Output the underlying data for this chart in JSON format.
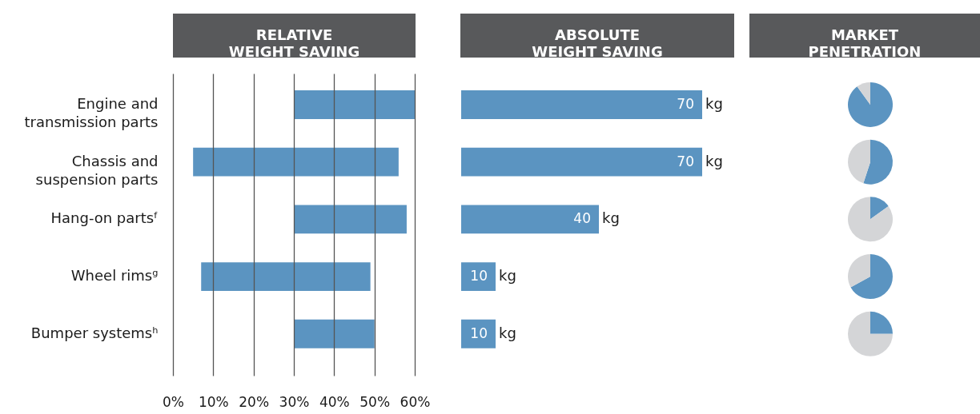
{
  "chart_data": [
    {
      "type": "bar",
      "orientation": "horizontal",
      "title": "RELATIVE\nWEIGHT SAVING",
      "categories": [
        "Engine and transmission parts",
        "Chassis and suspension parts",
        "Hang-on partsᶠ",
        "Wheel rimsᵍ",
        "Bumper systemsʰ"
      ],
      "base": [
        30,
        5,
        30,
        7,
        30
      ],
      "values": [
        30,
        51,
        28,
        42,
        20
      ],
      "color": "#5b94c1",
      "xlim": [
        0,
        60
      ],
      "xticks": [
        {
          "value": 0,
          "label": "0%"
        },
        {
          "value": 10,
          "label": "10%"
        },
        {
          "value": 20,
          "label": "20%"
        },
        {
          "value": 30,
          "label": "30%"
        },
        {
          "value": 40,
          "label": "40%"
        },
        {
          "value": 50,
          "label": "50%"
        },
        {
          "value": 60,
          "label": "60%"
        }
      ],
      "grid": "x"
    },
    {
      "type": "bar",
      "orientation": "horizontal",
      "title": "ABSOLUTE\nWEIGHT SAVING",
      "categories": [
        "Engine and transmission parts",
        "Chassis and suspension parts",
        "Hang-on partsᶠ",
        "Wheel rimsᵍ",
        "Bumper systemsʰ"
      ],
      "values": [
        70,
        70,
        40,
        10,
        10
      ],
      "color": "#5b94c1",
      "data_labels": true,
      "tick_labels": false,
      "annotations": [
        {
          "text": "kg",
          "x": 70,
          "y": "Engine and transmission parts"
        },
        {
          "text": "kg",
          "x": 70,
          "y": "Chassis and suspension parts"
        },
        {
          "text": "kg",
          "x": 40,
          "y": "Hang-on partsᶠ"
        },
        {
          "text": "kg",
          "x": 10,
          "y": "Wheel rimsᵍ"
        },
        {
          "text": "kg",
          "x": 10,
          "y": "Bumper systemsʰ"
        }
      ]
    },
    {
      "type": "pie",
      "title": "MARKET\nPENETRATION",
      "categories": [
        null,
        null
      ],
      "values": [
        90,
        10
      ],
      "colors": [
        "#5b94c1",
        "#d4d5d7"
      ]
    },
    {
      "type": "pie",
      "categories": [
        null,
        null
      ],
      "values": [
        55,
        45
      ],
      "colors": [
        "#5b94c1",
        "#d4d5d7"
      ]
    },
    {
      "type": "pie",
      "categories": [
        null,
        null
      ],
      "values": [
        15,
        85
      ],
      "colors": [
        "#5b94c1",
        "#d4d5d7"
      ]
    },
    {
      "type": "pie",
      "categories": [
        null,
        null
      ],
      "values": [
        67,
        33
      ],
      "colors": [
        "#5b94c1",
        "#d4d5d7"
      ]
    },
    {
      "type": "pie",
      "categories": [
        null,
        null
      ],
      "values": [
        25,
        75
      ],
      "colors": [
        "#5b94c1",
        "#d4d5d7"
      ]
    }
  ]
}
